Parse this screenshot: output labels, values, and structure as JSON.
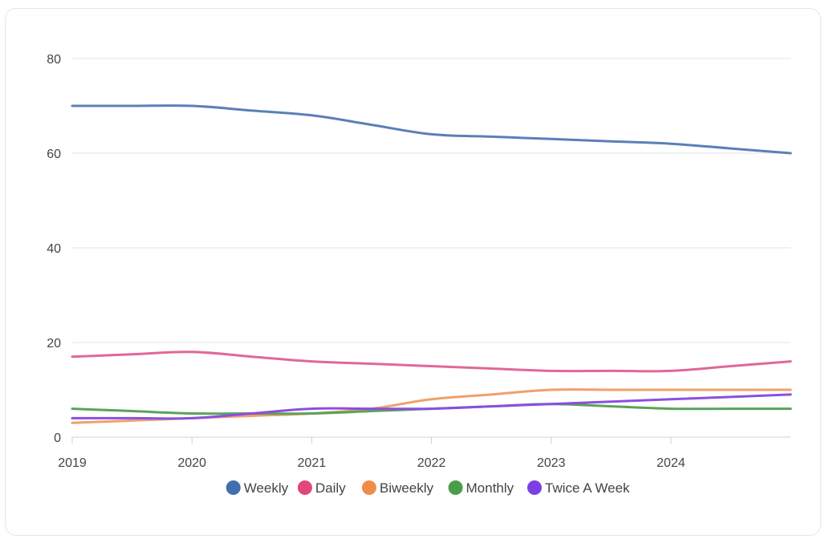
{
  "chart_data": {
    "type": "line",
    "x": [
      "2019",
      "2019.5",
      "2020",
      "2020.5",
      "2021",
      "2021.5",
      "2022",
      "2022.5",
      "2023",
      "2023.5",
      "2024",
      "2024.5",
      "2025"
    ],
    "x_tick_labels": [
      "2019",
      "2020",
      "2021",
      "2022",
      "2023",
      "2024"
    ],
    "y_ticks": [
      0,
      20,
      40,
      60,
      80
    ],
    "ylim": [
      0,
      80
    ],
    "grid": true,
    "legend_position": "bottom",
    "series": [
      {
        "name": "Weekly",
        "color": "#5b7fb8",
        "legend_color": "#3f6fb0",
        "values": [
          70,
          70,
          70,
          69,
          68,
          66,
          64,
          63.5,
          63,
          62.5,
          62,
          61,
          60
        ]
      },
      {
        "name": "Daily",
        "color": "#e0679a",
        "legend_color": "#e2467f",
        "values": [
          17,
          17.5,
          18,
          17,
          16,
          15.5,
          15,
          14.5,
          14,
          14,
          14,
          15,
          16
        ]
      },
      {
        "name": "Biweekly",
        "color": "#f0a06a",
        "legend_color": "#f08b4a",
        "values": [
          3,
          3.5,
          4,
          4.5,
          5,
          6,
          8,
          9,
          10,
          10,
          10,
          10,
          10
        ]
      },
      {
        "name": "Monthly",
        "color": "#5aa35a",
        "legend_color": "#4a9e4a",
        "values": [
          6,
          5.5,
          5,
          5,
          5,
          5.5,
          6,
          6.5,
          7,
          6.5,
          6,
          6,
          6
        ]
      },
      {
        "name": "Twice A Week",
        "color": "#8a4fe0",
        "legend_color": "#7b3fe4",
        "values": [
          4,
          4,
          4,
          5,
          6,
          6,
          6,
          6.5,
          7,
          7.5,
          8,
          8.5,
          9
        ]
      }
    ]
  }
}
